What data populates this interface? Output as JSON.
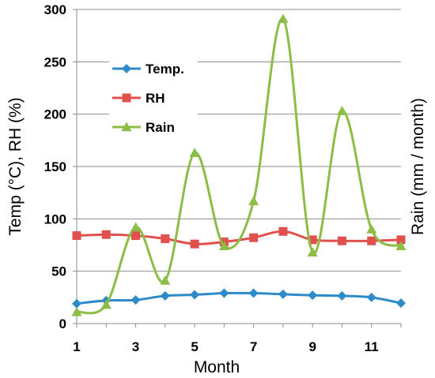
{
  "chart_data": {
    "type": "line",
    "xlabel": "Month",
    "ylabel_left": "Temp (°C), RH (%)",
    "ylabel_right": "Rain (mm / month)",
    "x": [
      1,
      2,
      3,
      4,
      5,
      6,
      7,
      8,
      9,
      10,
      11,
      12
    ],
    "x_tick_labels": [
      "1",
      "3",
      "5",
      "7",
      "9",
      "11"
    ],
    "y_tick_labels": [
      "0",
      "50",
      "100",
      "150",
      "200",
      "250",
      "300"
    ],
    "xlim": [
      1,
      12
    ],
    "ylim": [
      0,
      300
    ],
    "grid": true,
    "legend_position": "top-left",
    "series": [
      {
        "name": "Temp.",
        "color": "#2E8BC9",
        "marker": "diamond",
        "values": [
          19,
          22,
          22.5,
          26.5,
          27.5,
          29,
          29,
          28,
          27,
          26.5,
          25,
          19.5
        ]
      },
      {
        "name": "RH",
        "color": "#E0504C",
        "marker": "square",
        "values": [
          84,
          85,
          84,
          81,
          76,
          78,
          82,
          88,
          80,
          79,
          79,
          80
        ]
      },
      {
        "name": "Rain",
        "color": "#8BBD47",
        "marker": "triangle",
        "values": [
          11,
          18,
          92,
          41,
          163,
          74,
          117,
          291,
          68,
          203,
          90,
          74
        ]
      }
    ]
  }
}
